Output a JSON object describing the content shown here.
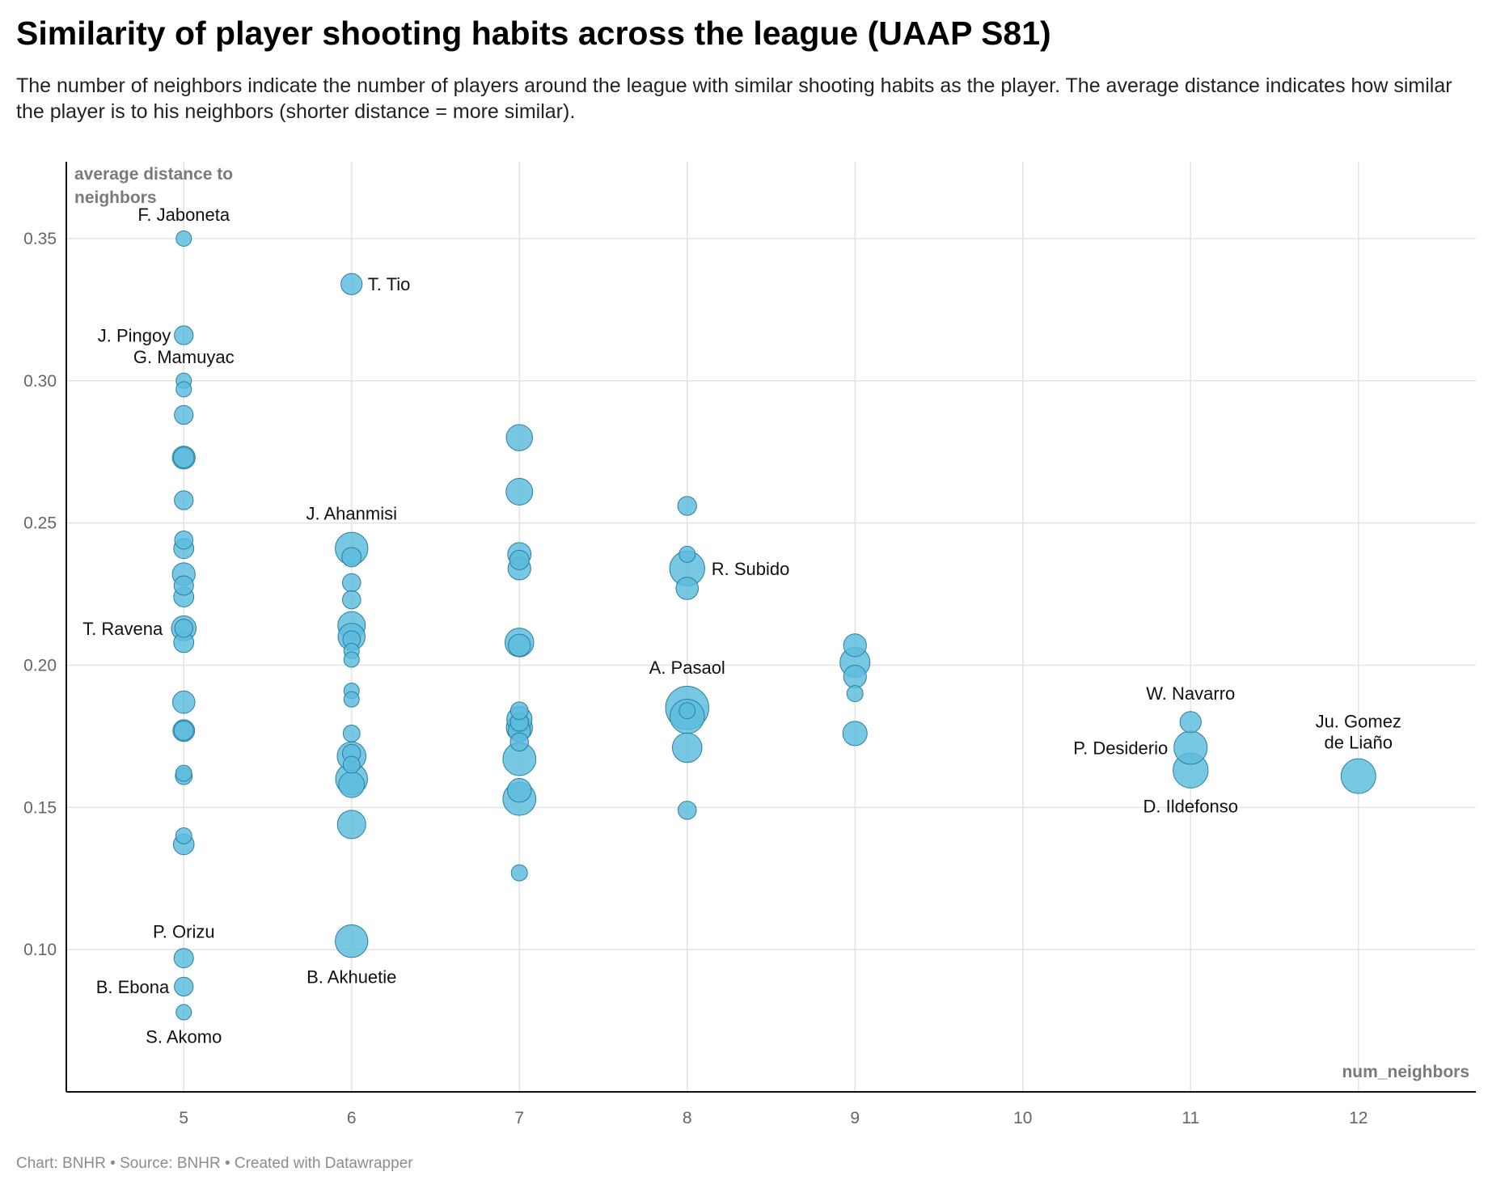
{
  "header": {
    "title": "Similarity of player shooting habits across the league (UAAP S81)",
    "subtitle": "The number of neighbors indicate the number of players around the league with similar shooting habits as the player. The average distance indicates how similar the player is to his neighbors (shorter distance = more similar)."
  },
  "footer": {
    "source": "Chart: BNHR • Source: BNHR • Created with Datawrapper"
  },
  "chart_data": {
    "type": "scatter",
    "title": "Similarity of player shooting habits across the league (UAAP S81)",
    "xlabel": "num_neighbors",
    "ylabel": "average distance to neighbors",
    "xlim": [
      4.3,
      12.7
    ],
    "ylim": [
      0.05,
      0.377
    ],
    "x_ticks": [
      "5",
      "6",
      "7",
      "8",
      "9",
      "10",
      "11",
      "12"
    ],
    "y_ticks": [
      "0.10",
      "0.15",
      "0.20",
      "0.25",
      "0.30",
      "0.35"
    ],
    "grid": true,
    "colors": {
      "fill": "#5bbcdd",
      "stroke": "#2a7f9f",
      "grid": "#e3e3e3",
      "axis": "#111111"
    },
    "points": [
      {
        "x": 5,
        "y": 0.35,
        "s": 1,
        "label": "F. Jaboneta"
      },
      {
        "x": 5,
        "y": 0.316,
        "s": 1.5,
        "label": "J. Pingoy"
      },
      {
        "x": 5,
        "y": 0.3,
        "s": 1,
        "label": "G. Mamuyac"
      },
      {
        "x": 5,
        "y": 0.297,
        "s": 1
      },
      {
        "x": 5,
        "y": 0.288,
        "s": 1.5
      },
      {
        "x": 5,
        "y": 0.273,
        "s": 2.2
      },
      {
        "x": 5,
        "y": 0.273,
        "s": 1.8
      },
      {
        "x": 5,
        "y": 0.258,
        "s": 1.5
      },
      {
        "x": 5,
        "y": 0.244,
        "s": 1.4
      },
      {
        "x": 5,
        "y": 0.241,
        "s": 1.7
      },
      {
        "x": 5,
        "y": 0.232,
        "s": 2.2
      },
      {
        "x": 5,
        "y": 0.228,
        "s": 1.6
      },
      {
        "x": 5,
        "y": 0.224,
        "s": 1.7
      },
      {
        "x": 5,
        "y": 0.213,
        "s": 2.6,
        "label": "T. Ravena"
      },
      {
        "x": 5,
        "y": 0.213,
        "s": 1.4
      },
      {
        "x": 5,
        "y": 0.208,
        "s": 1.7
      },
      {
        "x": 5,
        "y": 0.187,
        "s": 2.1
      },
      {
        "x": 5,
        "y": 0.177,
        "s": 2
      },
      {
        "x": 5,
        "y": 0.177,
        "s": 1.6
      },
      {
        "x": 5,
        "y": 0.162,
        "s": 1.1
      },
      {
        "x": 5,
        "y": 0.161,
        "s": 1.2
      },
      {
        "x": 5,
        "y": 0.14,
        "s": 1.1
      },
      {
        "x": 5,
        "y": 0.137,
        "s": 1.8
      },
      {
        "x": 5,
        "y": 0.097,
        "s": 1.6,
        "label": "P. Orizu"
      },
      {
        "x": 5,
        "y": 0.087,
        "s": 1.5,
        "label": "B. Ebona"
      },
      {
        "x": 5,
        "y": 0.078,
        "s": 1,
        "label": "S. Akomo"
      },
      {
        "x": 6,
        "y": 0.334,
        "s": 1.9,
        "label": "T. Tio"
      },
      {
        "x": 6,
        "y": 0.241,
        "s": 4.5,
        "label": "J. Ahanmisi"
      },
      {
        "x": 6,
        "y": 0.238,
        "s": 1.6
      },
      {
        "x": 6,
        "y": 0.229,
        "s": 1.4
      },
      {
        "x": 6,
        "y": 0.223,
        "s": 1.4
      },
      {
        "x": 6,
        "y": 0.214,
        "s": 3.2
      },
      {
        "x": 6,
        "y": 0.21,
        "s": 3.1
      },
      {
        "x": 6,
        "y": 0.209,
        "s": 1.3
      },
      {
        "x": 6,
        "y": 0.205,
        "s": 1
      },
      {
        "x": 6,
        "y": 0.202,
        "s": 1
      },
      {
        "x": 6,
        "y": 0.191,
        "s": 1
      },
      {
        "x": 6,
        "y": 0.188,
        "s": 1
      },
      {
        "x": 6,
        "y": 0.176,
        "s": 1.2
      },
      {
        "x": 6,
        "y": 0.169,
        "s": 1.4
      },
      {
        "x": 6,
        "y": 0.168,
        "s": 3.5
      },
      {
        "x": 6,
        "y": 0.165,
        "s": 1.2
      },
      {
        "x": 6,
        "y": 0.16,
        "s": 4.3
      },
      {
        "x": 6,
        "y": 0.158,
        "s": 2.8
      },
      {
        "x": 6,
        "y": 0.144,
        "s": 3.4
      },
      {
        "x": 6,
        "y": 0.103,
        "s": 4.5,
        "label": "B. Akhuetie"
      },
      {
        "x": 7,
        "y": 0.28,
        "s": 2.9
      },
      {
        "x": 7,
        "y": 0.261,
        "s": 3
      },
      {
        "x": 7,
        "y": 0.239,
        "s": 2.3
      },
      {
        "x": 7,
        "y": 0.237,
        "s": 1.6
      },
      {
        "x": 7,
        "y": 0.234,
        "s": 2.2
      },
      {
        "x": 7,
        "y": 0.208,
        "s": 3.5
      },
      {
        "x": 7,
        "y": 0.207,
        "s": 2.1
      },
      {
        "x": 7,
        "y": 0.184,
        "s": 1.3
      },
      {
        "x": 7,
        "y": 0.181,
        "s": 2.7
      },
      {
        "x": 7,
        "y": 0.18,
        "s": 1.4
      },
      {
        "x": 7,
        "y": 0.178,
        "s": 2.9
      },
      {
        "x": 7,
        "y": 0.177,
        "s": 2.1
      },
      {
        "x": 7,
        "y": 0.173,
        "s": 1.4
      },
      {
        "x": 7,
        "y": 0.167,
        "s": 4.6
      },
      {
        "x": 7,
        "y": 0.156,
        "s": 2.4
      },
      {
        "x": 7,
        "y": 0.153,
        "s": 4.6
      },
      {
        "x": 7,
        "y": 0.127,
        "s": 1.1
      },
      {
        "x": 8,
        "y": 0.256,
        "s": 1.5
      },
      {
        "x": 8,
        "y": 0.239,
        "s": 1.1
      },
      {
        "x": 8,
        "y": 0.234,
        "s": 5.2,
        "label": "R. Subido"
      },
      {
        "x": 8,
        "y": 0.227,
        "s": 2.1
      },
      {
        "x": 8,
        "y": 0.185,
        "s": 7.9,
        "label": "A. Pasaol"
      },
      {
        "x": 8,
        "y": 0.184,
        "s": 1.1
      },
      {
        "x": 8,
        "y": 0.182,
        "s": 5
      },
      {
        "x": 8,
        "y": 0.171,
        "s": 3.7
      },
      {
        "x": 8,
        "y": 0.149,
        "s": 1.4
      },
      {
        "x": 9,
        "y": 0.207,
        "s": 2.2
      },
      {
        "x": 9,
        "y": 0.201,
        "s": 3.8
      },
      {
        "x": 9,
        "y": 0.196,
        "s": 2.2
      },
      {
        "x": 9,
        "y": 0.19,
        "s": 1.1
      },
      {
        "x": 9,
        "y": 0.176,
        "s": 2.5
      },
      {
        "x": 11,
        "y": 0.18,
        "s": 1.9,
        "label": "W. Navarro"
      },
      {
        "x": 11,
        "y": 0.171,
        "s": 4.7,
        "label": "P. Desiderio"
      },
      {
        "x": 11,
        "y": 0.163,
        "s": 5.2,
        "label": "D. Ildefonso"
      },
      {
        "x": 12,
        "y": 0.161,
        "s": 5.1,
        "label": "Ju. Gomez de Liaño"
      }
    ]
  }
}
